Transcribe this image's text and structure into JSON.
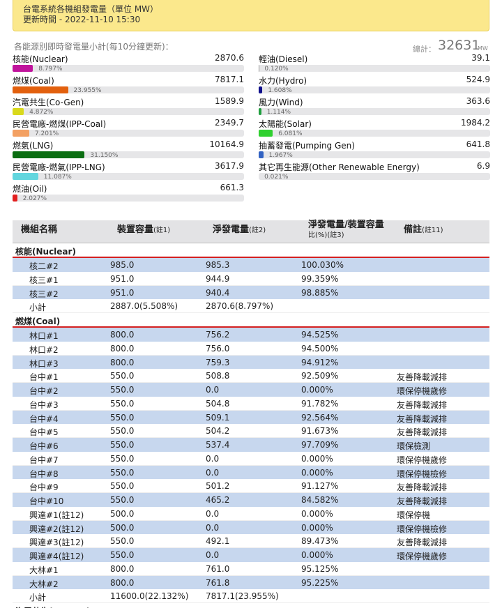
{
  "header": {
    "title": "台電系統各機組發電量（單位 MW）",
    "updated": "更新時間 - 2022-11-10 15:30"
  },
  "summary": {
    "caption": "各能源別即時發電量小計(每10分鐘更新)：",
    "total_label": "總計：",
    "total": "32631",
    "unit": "MW",
    "columns": [
      [
        {
          "name": "核能(Nuclear)",
          "value": "2870.6",
          "pct": 8.797,
          "pct_label": "8.797%",
          "color": "#c0139c"
        },
        {
          "name": "燃煤(Coal)",
          "value": "7817.1",
          "pct": 23.955,
          "pct_label": "23.955%",
          "color": "#e2600e"
        },
        {
          "name": "汽電共生(Co-Gen)",
          "value": "1589.9",
          "pct": 4.872,
          "pct_label": "4.872%",
          "color": "#d9d91c"
        },
        {
          "name": "民營電廠-燃煤(IPP-Coal)",
          "value": "2349.7",
          "pct": 7.201,
          "pct_label": "7.201%",
          "color": "#f3a062"
        },
        {
          "name": "燃氣(LNG)",
          "value": "10164.9",
          "pct": 31.15,
          "pct_label": "31.150%",
          "color": "#0b6e12"
        },
        {
          "name": "民營電廠-燃氣(IPP-LNG)",
          "value": "3617.9",
          "pct": 11.087,
          "pct_label": "11.087%",
          "color": "#62d6de"
        },
        {
          "name": "燃油(Oil)",
          "value": "661.3",
          "pct": 2.027,
          "pct_label": "2.027%",
          "color": "#e21f1f"
        }
      ],
      [
        {
          "name": "輕油(Diesel)",
          "value": "39.1",
          "pct": 0.12,
          "pct_label": "0.120%",
          "color": "#999999"
        },
        {
          "name": "水力(Hydro)",
          "value": "524.9",
          "pct": 1.608,
          "pct_label": "1.608%",
          "color": "#10108c"
        },
        {
          "name": "風力(Wind)",
          "value": "363.6",
          "pct": 1.114,
          "pct_label": "1.114%",
          "color": "#1f9e3e"
        },
        {
          "name": "太陽能(Solar)",
          "value": "1984.2",
          "pct": 6.081,
          "pct_label": "6.081%",
          "color": "#2fd02f"
        },
        {
          "name": "抽蓄發電(Pumping Gen)",
          "value": "641.8",
          "pct": 1.967,
          "pct_label": "1.967%",
          "color": "#3262c2"
        },
        {
          "name": "其它再生能源(Other Renewable Energy)",
          "value": "6.9",
          "pct": 0.021,
          "pct_label": "0.021%",
          "color": "#999999"
        }
      ]
    ]
  },
  "table": {
    "headers": [
      [
        "機組名稱"
      ],
      [
        "裝置容量",
        "(註1)"
      ],
      [
        "淨發電量",
        "(註2)"
      ],
      [
        "淨發電量/裝置容量",
        "比(%)",
        "(註3)"
      ],
      [
        "備註",
        "(註11)"
      ]
    ],
    "groups": [
      {
        "name": "核能(Nuclear)",
        "rows": [
          [
            "核二#2",
            "985.0",
            "985.3",
            "100.030%"
          ],
          [
            "核三#1",
            "951.0",
            "944.9",
            "99.359%"
          ],
          [
            "核三#2",
            "951.0",
            "940.4",
            "98.885%"
          ],
          [
            "小計",
            "2887.0(5.508%)",
            "2870.6(8.797%)"
          ]
        ]
      },
      {
        "name": "燃煤(Coal)",
        "rows": [
          [
            "林口#1",
            "800.0",
            "756.2",
            "94.525%"
          ],
          [
            "林口#2",
            "800.0",
            "756.0",
            "94.500%"
          ],
          [
            "林口#3",
            "800.0",
            "759.3",
            "94.912%"
          ],
          [
            "台中#1",
            "550.0",
            "508.8",
            "92.509%",
            "友善降載減排"
          ],
          [
            "台中#2",
            "550.0",
            "0.0",
            "0.000%",
            "環保停機歲修"
          ],
          [
            "台中#3",
            "550.0",
            "504.8",
            "91.782%",
            "友善降載減排"
          ],
          [
            "台中#4",
            "550.0",
            "509.1",
            "92.564%",
            "友善降載減排"
          ],
          [
            "台中#5",
            "550.0",
            "504.2",
            "91.673%",
            "友善降載減排"
          ],
          [
            "台中#6",
            "550.0",
            "537.4",
            "97.709%",
            "環保檢測"
          ],
          [
            "台中#7",
            "550.0",
            "0.0",
            "0.000%",
            "環保停機歲修"
          ],
          [
            "台中#8",
            "550.0",
            "0.0",
            "0.000%",
            "環保停機檢修"
          ],
          [
            "台中#9",
            "550.0",
            "501.2",
            "91.127%",
            "友善降載減排"
          ],
          [
            "台中#10",
            "550.0",
            "465.2",
            "84.582%",
            "友善降載減排"
          ],
          [
            "興達#1(註12)",
            "500.0",
            "0.0",
            "0.000%",
            "環保停機"
          ],
          [
            "興達#2(註12)",
            "500.0",
            "0.0",
            "0.000%",
            "環保停機檢修"
          ],
          [
            "興達#3(註12)",
            "550.0",
            "492.1",
            "89.473%",
            "友善降載減排"
          ],
          [
            "興達#4(註12)",
            "550.0",
            "0.0",
            "0.000%",
            "環保停機歲修"
          ],
          [
            "大林#1",
            "800.0",
            "761.0",
            "95.125%"
          ],
          [
            "大林#2",
            "800.0",
            "761.8",
            "95.225%"
          ],
          [
            "小計",
            "11600.0(22.132%)",
            "7817.1(23.955%)"
          ]
        ]
      },
      {
        "name": "汽電共生(Co-Gen)",
        "rows": []
      }
    ]
  }
}
